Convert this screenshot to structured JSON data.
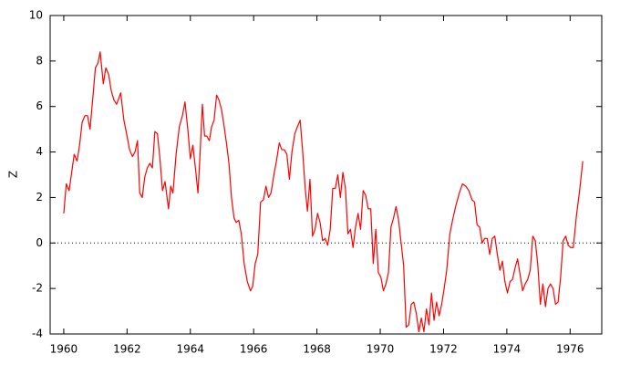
{
  "chart_data": {
    "type": "line",
    "y_label": "Z",
    "x": [
      1960.0,
      1960.08,
      1960.17,
      1960.25,
      1960.33,
      1960.42,
      1960.5,
      1960.58,
      1960.67,
      1960.75,
      1960.83,
      1960.92,
      1961.0,
      1961.08,
      1961.15,
      1961.25,
      1961.33,
      1961.42,
      1961.5,
      1961.58,
      1961.67,
      1961.75,
      1961.8,
      1961.9,
      1962.0,
      1962.08,
      1962.17,
      1962.25,
      1962.33,
      1962.4,
      1962.48,
      1962.56,
      1962.64,
      1962.72,
      1962.8,
      1962.88,
      1962.96,
      1963.04,
      1963.12,
      1963.2,
      1963.31,
      1963.38,
      1963.45,
      1963.55,
      1963.65,
      1963.75,
      1963.83,
      1963.92,
      1964.0,
      1964.08,
      1964.16,
      1964.24,
      1964.31,
      1964.38,
      1964.45,
      1964.52,
      1964.6,
      1964.67,
      1964.75,
      1964.83,
      1964.9,
      1964.98,
      1965.06,
      1965.14,
      1965.22,
      1965.3,
      1965.38,
      1965.45,
      1965.53,
      1965.61,
      1965.7,
      1965.8,
      1965.9,
      1965.97,
      1966.05,
      1966.13,
      1966.22,
      1966.31,
      1966.39,
      1966.47,
      1966.55,
      1966.64,
      1966.72,
      1966.81,
      1966.89,
      1966.97,
      1967.05,
      1967.13,
      1967.21,
      1967.3,
      1967.38,
      1967.47,
      1967.55,
      1967.63,
      1967.7,
      1967.78,
      1967.86,
      1967.94,
      1968.02,
      1968.1,
      1968.18,
      1968.26,
      1968.34,
      1968.42,
      1968.5,
      1968.58,
      1968.66,
      1968.74,
      1968.82,
      1968.9,
      1968.98,
      1969.06,
      1969.14,
      1969.22,
      1969.3,
      1969.38,
      1969.46,
      1969.54,
      1969.62,
      1969.7,
      1969.78,
      1969.86,
      1969.94,
      1970.02,
      1970.1,
      1970.18,
      1970.26,
      1970.34,
      1970.42,
      1970.5,
      1970.58,
      1970.66,
      1970.74,
      1970.82,
      1970.9,
      1970.98,
      1971.06,
      1971.14,
      1971.22,
      1971.3,
      1971.38,
      1971.46,
      1971.54,
      1971.62,
      1971.7,
      1971.78,
      1971.86,
      1971.94,
      1972.02,
      1972.1,
      1972.2,
      1972.3,
      1972.4,
      1972.5,
      1972.6,
      1972.7,
      1972.8,
      1972.9,
      1972.98,
      1973.06,
      1973.14,
      1973.22,
      1973.3,
      1973.38,
      1973.46,
      1973.54,
      1973.62,
      1973.7,
      1973.78,
      1973.86,
      1973.94,
      1974.02,
      1974.1,
      1974.18,
      1974.26,
      1974.34,
      1974.42,
      1974.5,
      1974.58,
      1974.66,
      1974.74,
      1974.82,
      1974.9,
      1974.98,
      1975.06,
      1975.14,
      1975.22,
      1975.3,
      1975.38,
      1975.46,
      1975.54,
      1975.62,
      1975.7,
      1975.78,
      1975.86,
      1975.94,
      1976.02,
      1976.1,
      1976.2,
      1976.3,
      1976.4
    ],
    "series": [
      {
        "color": "#ff0000",
        "values": [
          1.3,
          2.6,
          2.3,
          3.1,
          3.9,
          3.6,
          4.3,
          5.3,
          5.6,
          5.6,
          5.0,
          6.4,
          7.7,
          7.9,
          8.4,
          7.0,
          7.7,
          7.4,
          6.7,
          6.3,
          6.1,
          6.4,
          6.6,
          5.4,
          4.7,
          4.1,
          3.8,
          4.0,
          4.5,
          2.2,
          2.0,
          2.9,
          3.3,
          3.5,
          3.3,
          4.9,
          4.8,
          3.7,
          2.3,
          2.7,
          1.5,
          2.5,
          2.2,
          3.9,
          5.1,
          5.6,
          6.2,
          5.0,
          3.7,
          4.3,
          3.3,
          2.2,
          4.0,
          6.1,
          4.7,
          4.7,
          4.5,
          5.1,
          5.4,
          6.5,
          6.3,
          5.9,
          5.2,
          4.4,
          3.5,
          2.0,
          1.1,
          0.9,
          1.0,
          0.4,
          -0.9,
          -1.7,
          -2.1,
          -1.9,
          -0.9,
          -0.5,
          1.8,
          1.9,
          2.5,
          2.0,
          2.2,
          3.0,
          3.6,
          4.4,
          4.1,
          4.1,
          3.9,
          2.8,
          4.0,
          4.8,
          5.1,
          5.4,
          4.0,
          2.4,
          1.4,
          2.8,
          0.3,
          0.6,
          1.3,
          0.9,
          0.1,
          0.2,
          -0.1,
          0.6,
          2.4,
          2.4,
          3.0,
          2.0,
          3.1,
          2.4,
          0.4,
          0.6,
          -0.2,
          0.7,
          1.3,
          0.6,
          2.3,
          2.1,
          1.5,
          1.5,
          -0.9,
          0.6,
          -1.3,
          -1.5,
          -2.1,
          -1.8,
          -1.3,
          0.7,
          1.1,
          1.6,
          1.0,
          0.0,
          -1.0,
          -3.7,
          -3.6,
          -2.7,
          -2.6,
          -3.1,
          -3.9,
          -3.3,
          -3.9,
          -2.9,
          -3.6,
          -2.2,
          -3.4,
          -2.6,
          -3.2,
          -2.7,
          -2.0,
          -1.2,
          0.4,
          1.1,
          1.7,
          2.2,
          2.6,
          2.5,
          2.3,
          1.9,
          1.8,
          0.8,
          0.7,
          0.0,
          0.2,
          0.2,
          -0.5,
          0.2,
          0.3,
          -0.5,
          -1.2,
          -0.8,
          -1.7,
          -2.2,
          -1.7,
          -1.6,
          -1.1,
          -0.7,
          -1.4,
          -2.1,
          -1.8,
          -1.6,
          -1.2,
          0.3,
          0.1,
          -1.0,
          -2.7,
          -1.8,
          -2.8,
          -2.0,
          -1.8,
          -2.0,
          -2.7,
          -2.6,
          -1.5,
          0.1,
          0.3,
          -0.1,
          -0.2,
          -0.2,
          1.2,
          2.3,
          3.6
        ]
      }
    ],
    "xlim": [
      1959.57,
      1977.0
    ],
    "xticks": [
      1960,
      1962,
      1964,
      1966,
      1968,
      1970,
      1972,
      1974,
      1976
    ],
    "ylim": [
      -4,
      10
    ],
    "yticks": [
      -4,
      -2,
      0,
      2,
      4,
      6,
      8,
      10
    ],
    "zero_line": true,
    "grid": false
  }
}
